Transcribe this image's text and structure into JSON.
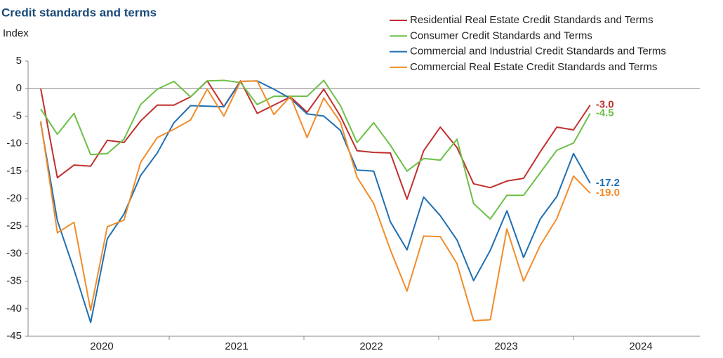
{
  "chart_data": {
    "type": "line",
    "title": "Credit standards and terms",
    "ylabel": "Index",
    "categories": [
      null,
      null,
      null,
      null,
      null,
      null,
      null,
      null,
      null,
      null,
      null,
      null,
      null,
      null,
      null,
      null,
      null,
      null,
      null,
      null,
      null,
      null,
      null,
      null,
      null,
      null,
      null,
      null,
      null,
      null,
      null,
      null,
      null,
      null
    ],
    "year_labels": [
      "2020",
      "2021",
      "2022",
      "2023",
      "2024"
    ],
    "ylim": [
      -45,
      5
    ],
    "yticks": [
      5,
      0,
      -5,
      -10,
      -15,
      -20,
      -25,
      -30,
      -35,
      -40,
      -45
    ],
    "series": [
      {
        "name": "Residential Real Estate Credit Standards and Terms",
        "color": "#c0302e",
        "end_label": "-3.0",
        "values": [
          0,
          -16.2,
          -13.9,
          -14.1,
          -9.4,
          -9.8,
          -5.9,
          -3.0,
          -3.0,
          -1.5,
          1.4,
          -3.3,
          1.4,
          -4.5,
          -3.0,
          -1.5,
          -4.3,
          -0.1,
          -5.0,
          -11.3,
          -11.6,
          -11.7,
          -20.1,
          -11.3,
          -7.0,
          -10.7,
          -17.3,
          -18.0,
          -16.8,
          -16.3,
          -11.5,
          -7.0,
          -7.5,
          -3.0
        ]
      },
      {
        "name": "Consumer Credit Standards and Terms",
        "color": "#6cbf47",
        "end_label": "-4.5",
        "values": [
          -3.7,
          -8.3,
          -4.5,
          -12.0,
          -11.8,
          -9.2,
          -2.9,
          -0.1,
          1.3,
          -1.5,
          1.4,
          1.5,
          1.1,
          -2.9,
          -1.4,
          -1.4,
          -1.4,
          1.5,
          -3.1,
          -9.8,
          -6.2,
          -10.3,
          -15.0,
          -12.7,
          -13.0,
          -9.2,
          -20.9,
          -23.7,
          -19.4,
          -19.4,
          -15.3,
          -11.2,
          -9.9,
          -4.5
        ]
      },
      {
        "name": "Commercial and Industrial Credit Standards and Terms",
        "color": "#1f6fb2",
        "end_label": "-17.2",
        "values": [
          -6.2,
          -24.0,
          -32.9,
          -42.5,
          -27.3,
          -22.8,
          -15.8,
          -11.7,
          -6.2,
          -3.1,
          -3.2,
          -3.3,
          1.3,
          1.4,
          -0.1,
          -1.8,
          -4.6,
          -5.0,
          -7.6,
          -14.8,
          -15.0,
          -24.2,
          -29.3,
          -19.7,
          -23.1,
          -27.5,
          -34.9,
          -29.4,
          -22.2,
          -30.7,
          -23.7,
          -19.6,
          -11.8,
          -17.2
        ]
      },
      {
        "name": "Commercial Real Estate Credit Standards and Terms",
        "color": "#f28c28",
        "end_label": "-19.0",
        "values": [
          -5.9,
          -26.2,
          -24.3,
          -40.3,
          -25.1,
          -23.9,
          -13.4,
          -8.9,
          -7.4,
          -5.7,
          -0.1,
          -5.0,
          1.3,
          1.4,
          -4.7,
          -1.4,
          -8.9,
          -1.7,
          -6.1,
          -16.1,
          -20.9,
          -29.3,
          -36.8,
          -26.8,
          -26.9,
          -31.8,
          -42.2,
          -42.0,
          -25.5,
          -35.0,
          -28.5,
          -23.6,
          -15.9,
          -19.0
        ]
      }
    ]
  }
}
